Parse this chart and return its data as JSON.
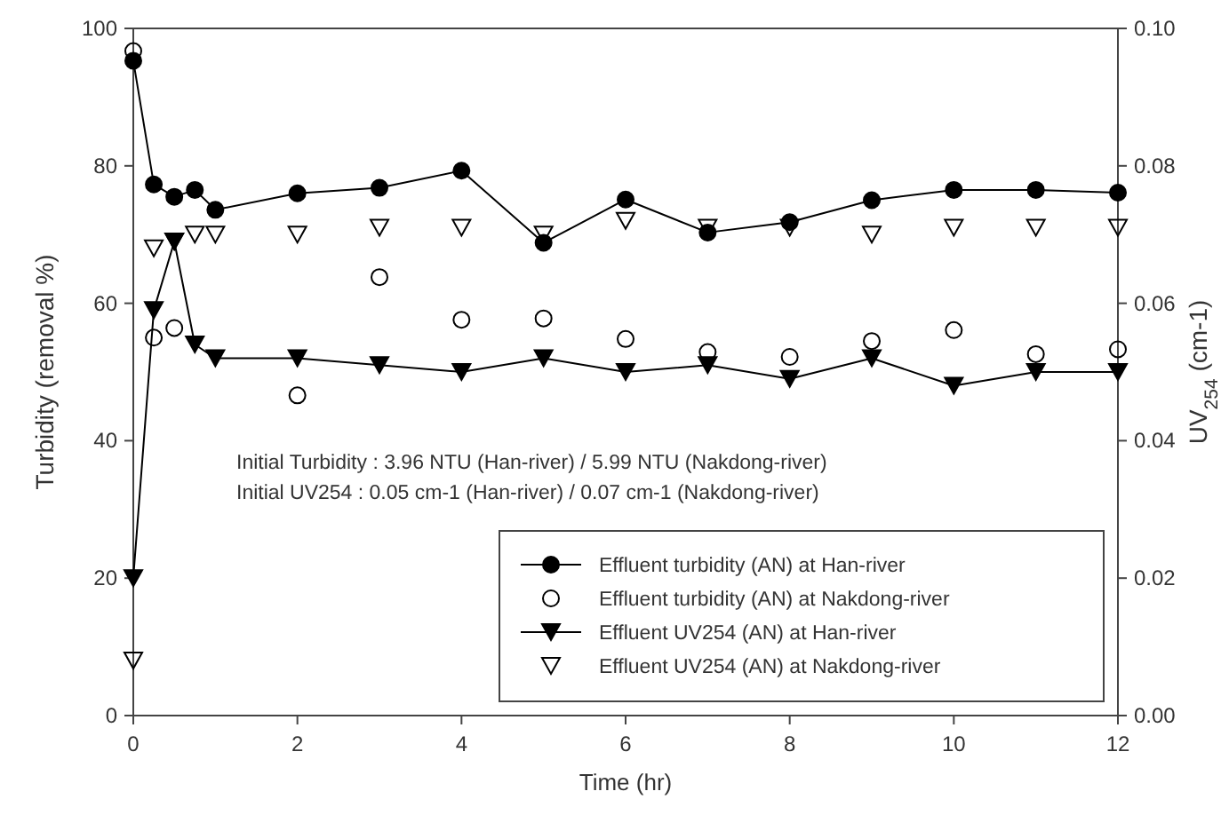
{
  "chart_data": {
    "type": "line",
    "xlabel": "Time (hr)",
    "ylabel": "Turbidity (removal %)",
    "y2label": "UV$_{254}$ (cm-1)",
    "x": [
      0,
      0.25,
      0.5,
      0.75,
      1,
      2,
      3,
      4,
      5,
      6,
      7,
      8,
      9,
      10,
      11,
      12
    ],
    "xlim": [
      0,
      12
    ],
    "xticks": [
      0,
      2,
      4,
      6,
      8,
      10,
      12
    ],
    "ylim": [
      0,
      100
    ],
    "yticks": [
      0,
      20,
      40,
      60,
      80,
      100
    ],
    "y2lim": [
      0,
      0.1
    ],
    "y2ticks": [
      {
        "value": 0,
        "label": "0.00"
      },
      {
        "value": 0.02,
        "label": "0.02"
      },
      {
        "value": 0.04,
        "label": "0.04"
      },
      {
        "value": 0.06,
        "label": "0.06"
      },
      {
        "value": 0.08,
        "label": "0.08"
      },
      {
        "value": 0.1,
        "label": "0.10"
      }
    ],
    "series": [
      {
        "name": "Effluent turbidity (AN) at Han-river",
        "type": "line",
        "marker": "circle",
        "color": "#000000",
        "values": [
          95.3,
          77.3,
          75.5,
          76.5,
          73.6,
          76.0,
          76.8,
          79.3,
          68.8,
          75.1,
          70.3,
          71.8,
          75.0,
          76.5,
          76.5,
          76.1
        ]
      },
      {
        "name": "Effluent turbidity (AN) at Nakdong-river",
        "type": "scatter",
        "marker": "circle",
        "color": "#000000",
        "values": [
          96.7,
          55.0,
          56.4,
          null,
          null,
          46.6,
          63.8,
          57.6,
          57.8,
          54.8,
          52.9,
          52.2,
          54.5,
          56.1,
          52.6,
          53.3
        ]
      },
      {
        "name": "Effluent UV254 (AN) at Han-river",
        "type": "line",
        "marker": "triangle",
        "axis": "y2",
        "color": "#000000",
        "values": [
          0.02,
          0.059,
          0.069,
          0.054,
          0.052,
          0.052,
          0.051,
          0.05,
          0.052,
          0.05,
          0.051,
          0.049,
          0.052,
          0.048,
          0.05,
          0.05
        ]
      },
      {
        "name": "Effluent UV254 (AN) at Nakdong-river",
        "type": "scatter",
        "marker": "triangle",
        "axis": "y2",
        "color": "#000000",
        "values": [
          0.008,
          0.068,
          0.069,
          0.07,
          0.07,
          0.07,
          0.071,
          0.071,
          0.07,
          0.072,
          0.071,
          0.071,
          0.07,
          0.071,
          0.071,
          0.071
        ]
      }
    ],
    "annotations": [
      "Initial Turbidity : 3.96 NTU (Han-river) / 5.99 NTU (Nakdong-river)",
      "Initial UV254 : 0.05 cm-1 (Han-river) / 0.07 cm-1 (Nakdong-river)"
    ],
    "legend": "bottom right",
    "grid": false
  }
}
